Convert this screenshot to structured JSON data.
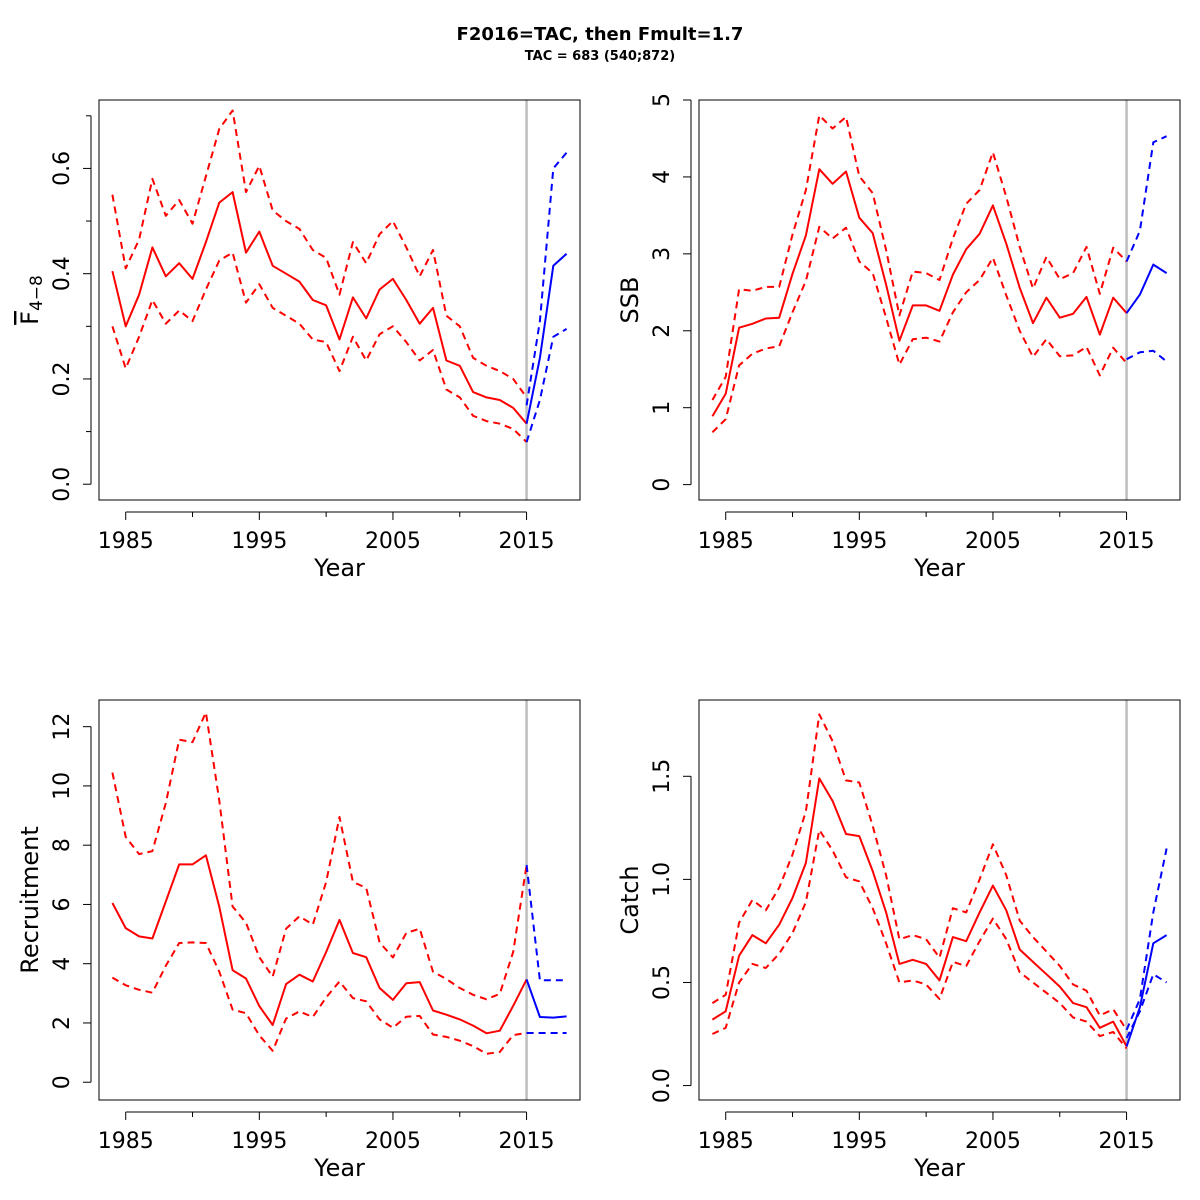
{
  "title": "F2016=TAC, then Fmult=1.7",
  "subtitle": "TAC = 683 (540;872)",
  "colors": {
    "historic": "#ff0000",
    "forecast": "#0000ff",
    "reference_line": "#bebebe"
  },
  "chart_data": [
    {
      "type": "line",
      "ylabel": "F",
      "ylabel_sub": "4−8",
      "ylabel_overline": true,
      "xlabel": "Year",
      "xlim": [
        1983,
        2019
      ],
      "ylim": [
        -0.03,
        0.73
      ],
      "xticks": [
        1985,
        1995,
        2005,
        2015
      ],
      "xtick_labels": [
        "1985",
        "1995",
        "2005",
        "2015"
      ],
      "yticks": [
        0.0,
        0.2,
        0.4,
        0.6
      ],
      "ytick_labels": [
        "0.0",
        "0.2",
        "0.4",
        "0.6"
      ],
      "yminor": [
        0.1,
        0.3,
        0.5,
        0.7
      ],
      "vline": 2015,
      "historic": {
        "x": [
          1984,
          1985,
          1986,
          1987,
          1988,
          1989,
          1990,
          1991,
          1992,
          1993,
          1994,
          1995,
          1996,
          1997,
          1998,
          1999,
          2000,
          2001,
          2002,
          2003,
          2004,
          2005,
          2006,
          2007,
          2008,
          2009,
          2010,
          2011,
          2012,
          2013,
          2014,
          2015
        ],
        "mid": [
          0.405,
          0.3,
          0.36,
          0.45,
          0.395,
          0.42,
          0.39,
          0.46,
          0.535,
          0.555,
          0.44,
          0.48,
          0.415,
          0.4,
          0.385,
          0.35,
          0.34,
          0.275,
          0.355,
          0.315,
          0.37,
          0.39,
          0.35,
          0.305,
          0.335,
          0.235,
          0.225,
          0.175,
          0.165,
          0.16,
          0.145,
          0.115
        ],
        "lo": [
          0.3,
          0.22,
          0.28,
          0.35,
          0.305,
          0.33,
          0.31,
          0.37,
          0.425,
          0.44,
          0.345,
          0.38,
          0.335,
          0.32,
          0.305,
          0.275,
          0.27,
          0.215,
          0.28,
          0.235,
          0.285,
          0.3,
          0.27,
          0.235,
          0.255,
          0.18,
          0.165,
          0.13,
          0.12,
          0.115,
          0.105,
          0.08
        ],
        "hi": [
          0.55,
          0.41,
          0.465,
          0.58,
          0.51,
          0.54,
          0.495,
          0.585,
          0.675,
          0.71,
          0.555,
          0.605,
          0.52,
          0.5,
          0.485,
          0.445,
          0.43,
          0.36,
          0.46,
          0.42,
          0.475,
          0.5,
          0.45,
          0.395,
          0.445,
          0.32,
          0.3,
          0.24,
          0.225,
          0.215,
          0.2,
          0.165
        ]
      },
      "forecast": {
        "x": [
          2015,
          2016,
          2017,
          2018
        ],
        "mid": [
          0.115,
          0.24,
          0.415,
          0.438
        ],
        "lo": [
          0.08,
          0.16,
          0.28,
          0.295
        ],
        "hi": [
          0.15,
          0.31,
          0.6,
          0.63
        ]
      }
    },
    {
      "type": "line",
      "ylabel": "SSB",
      "xlabel": "Year",
      "xlim": [
        1983,
        2019
      ],
      "ylim": [
        -0.2,
        5.0
      ],
      "xticks": [
        1985,
        1995,
        2005,
        2015
      ],
      "xtick_labels": [
        "1985",
        "1995",
        "2005",
        "2015"
      ],
      "yticks": [
        0,
        1,
        2,
        3,
        4,
        5
      ],
      "ytick_labels": [
        "0",
        "1",
        "2",
        "3",
        "4",
        "5"
      ],
      "vline": 2015,
      "historic": {
        "x": [
          1984,
          1985,
          1986,
          1987,
          1988,
          1989,
          1990,
          1991,
          1992,
          1993,
          1994,
          1995,
          1996,
          1997,
          1998,
          1999,
          2000,
          2001,
          2002,
          2003,
          2004,
          2005,
          2006,
          2007,
          2008,
          2009,
          2010,
          2011,
          2012,
          2013,
          2014,
          2015
        ],
        "mid": [
          0.89,
          1.18,
          2.04,
          2.09,
          2.16,
          2.17,
          2.74,
          3.24,
          4.1,
          3.91,
          4.07,
          3.47,
          3.27,
          2.6,
          1.87,
          2.33,
          2.33,
          2.26,
          2.73,
          3.06,
          3.26,
          3.63,
          3.13,
          2.56,
          2.1,
          2.43,
          2.17,
          2.22,
          2.44,
          1.95,
          2.43,
          2.23
        ],
        "lo": [
          0.68,
          0.85,
          1.55,
          1.7,
          1.77,
          1.8,
          2.24,
          2.65,
          3.35,
          3.2,
          3.34,
          2.9,
          2.75,
          2.17,
          1.56,
          1.89,
          1.91,
          1.86,
          2.24,
          2.5,
          2.66,
          2.95,
          2.46,
          2.0,
          1.66,
          1.89,
          1.67,
          1.68,
          1.79,
          1.42,
          1.78,
          1.58
        ],
        "hi": [
          1.1,
          1.4,
          2.54,
          2.52,
          2.57,
          2.57,
          3.25,
          3.83,
          4.8,
          4.63,
          4.78,
          4.01,
          3.79,
          3.05,
          2.2,
          2.77,
          2.75,
          2.66,
          3.2,
          3.65,
          3.83,
          4.32,
          3.74,
          3.09,
          2.55,
          2.96,
          2.67,
          2.75,
          3.09,
          2.48,
          3.08,
          2.9
        ]
      },
      "forecast": {
        "x": [
          2015,
          2016,
          2017,
          2018
        ],
        "mid": [
          2.23,
          2.47,
          2.86,
          2.75
        ],
        "lo": [
          1.63,
          1.72,
          1.74,
          1.6
        ],
        "hi": [
          2.9,
          3.3,
          4.45,
          4.53
        ]
      }
    },
    {
      "type": "line",
      "ylabel": "Recruitment",
      "xlabel": "Year",
      "xlim": [
        1983,
        2019
      ],
      "ylim": [
        -0.6,
        12.9
      ],
      "xticks": [
        1985,
        1995,
        2005,
        2015
      ],
      "xtick_labels": [
        "1985",
        "1995",
        "2005",
        "2015"
      ],
      "yticks": [
        0,
        2,
        4,
        6,
        8,
        10,
        12
      ],
      "ytick_labels": [
        "0",
        "2",
        "4",
        "6",
        "8",
        "10",
        "12"
      ],
      "vline": 2015,
      "historic": {
        "x": [
          1984,
          1985,
          1986,
          1987,
          1988,
          1989,
          1990,
          1991,
          1992,
          1993,
          1994,
          1995,
          1996,
          1997,
          1998,
          1999,
          2000,
          2001,
          2002,
          2003,
          2004,
          2005,
          2006,
          2007,
          2008,
          2009,
          2010,
          2011,
          2012,
          2013,
          2014,
          2015
        ],
        "mid": [
          6.05,
          5.2,
          4.92,
          4.85,
          6.1,
          7.35,
          7.35,
          7.66,
          5.92,
          3.78,
          3.5,
          2.57,
          1.93,
          3.31,
          3.63,
          3.4,
          4.39,
          5.48,
          4.36,
          4.22,
          3.18,
          2.78,
          3.34,
          3.38,
          2.42,
          2.28,
          2.12,
          1.91,
          1.65,
          1.74,
          2.58,
          3.47
        ],
        "lo": [
          3.53,
          3.27,
          3.12,
          3.02,
          3.93,
          4.7,
          4.72,
          4.7,
          3.73,
          2.45,
          2.33,
          1.58,
          1.06,
          2.15,
          2.39,
          2.2,
          2.86,
          3.4,
          2.84,
          2.73,
          2.12,
          1.84,
          2.21,
          2.24,
          1.61,
          1.53,
          1.4,
          1.22,
          0.96,
          1.02,
          1.59,
          1.66
        ],
        "hi": [
          10.45,
          8.28,
          7.7,
          7.8,
          9.42,
          11.56,
          11.48,
          12.48,
          9.5,
          5.93,
          5.38,
          4.22,
          3.56,
          5.18,
          5.6,
          5.32,
          6.75,
          8.95,
          6.76,
          6.56,
          4.72,
          4.21,
          5.04,
          5.18,
          3.73,
          3.48,
          3.18,
          2.95,
          2.8,
          2.98,
          4.4,
          7.33
        ]
      },
      "forecast": {
        "x": [
          2015,
          2016,
          2017,
          2018
        ],
        "mid": [
          3.47,
          2.2,
          2.18,
          2.22
        ],
        "lo": [
          1.66,
          1.66,
          1.66,
          1.66
        ],
        "hi": [
          7.33,
          3.44,
          3.44,
          3.44
        ]
      }
    },
    {
      "type": "line",
      "ylabel": "Catch",
      "xlabel": "Year",
      "xlim": [
        1983,
        2019
      ],
      "ylim": [
        -0.07,
        1.87
      ],
      "xticks": [
        1985,
        1995,
        2005,
        2015
      ],
      "xtick_labels": [
        "1985",
        "1995",
        "2005",
        "2015"
      ],
      "yticks": [
        0.0,
        0.5,
        1.0,
        1.5
      ],
      "ytick_labels": [
        "0.0",
        "0.5",
        "1.0",
        "1.5"
      ],
      "vline": 2015,
      "historic": {
        "x": [
          1984,
          1985,
          1986,
          1987,
          1988,
          1989,
          1990,
          1991,
          1992,
          1993,
          1994,
          1995,
          1996,
          1997,
          1998,
          1999,
          2000,
          2001,
          2002,
          2003,
          2004,
          2005,
          2006,
          2007,
          2008,
          2009,
          2010,
          2011,
          2012,
          2013,
          2014,
          2015
        ],
        "mid": [
          0.32,
          0.36,
          0.63,
          0.73,
          0.69,
          0.78,
          0.91,
          1.08,
          1.49,
          1.38,
          1.22,
          1.21,
          1.04,
          0.84,
          0.59,
          0.61,
          0.59,
          0.51,
          0.72,
          0.7,
          0.84,
          0.97,
          0.85,
          0.66,
          0.6,
          0.54,
          0.48,
          0.4,
          0.38,
          0.28,
          0.31,
          0.19
        ],
        "lo": [
          0.25,
          0.28,
          0.5,
          0.59,
          0.57,
          0.64,
          0.74,
          0.89,
          1.24,
          1.14,
          1.01,
          0.99,
          0.86,
          0.69,
          0.5,
          0.51,
          0.49,
          0.42,
          0.6,
          0.58,
          0.7,
          0.81,
          0.71,
          0.55,
          0.5,
          0.45,
          0.4,
          0.33,
          0.31,
          0.24,
          0.26,
          0.18
        ],
        "hi": [
          0.4,
          0.44,
          0.79,
          0.9,
          0.85,
          0.96,
          1.12,
          1.33,
          1.8,
          1.67,
          1.48,
          1.47,
          1.26,
          1.02,
          0.71,
          0.73,
          0.71,
          0.62,
          0.86,
          0.84,
          1.0,
          1.17,
          1.02,
          0.8,
          0.72,
          0.65,
          0.58,
          0.49,
          0.46,
          0.34,
          0.37,
          0.27
        ]
      },
      "forecast": {
        "x": [
          2015,
          2016,
          2017,
          2018
        ],
        "mid": [
          0.19,
          0.38,
          0.69,
          0.73
        ],
        "lo": [
          0.23,
          0.36,
          0.54,
          0.5
        ],
        "hi": [
          0.27,
          0.42,
          0.84,
          1.15
        ]
      }
    }
  ]
}
